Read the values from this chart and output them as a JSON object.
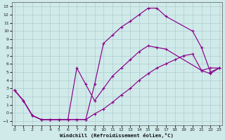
{
  "xlabel": "Windchill (Refroidissement éolien,°C)",
  "bg_color": "#d0eaea",
  "line_color": "#880088",
  "grid_color": "#b0cccc",
  "xlim": [
    -0.3,
    23.3
  ],
  "ylim": [
    -1.5,
    13.5
  ],
  "xticks": [
    0,
    1,
    2,
    3,
    4,
    5,
    6,
    7,
    8,
    9,
    10,
    11,
    12,
    13,
    14,
    15,
    16,
    17,
    18,
    19,
    20,
    21,
    22,
    23
  ],
  "yticks": [
    -1,
    0,
    1,
    2,
    3,
    4,
    5,
    6,
    7,
    8,
    9,
    10,
    11,
    12,
    13
  ],
  "curve1_x": [
    0,
    1,
    2,
    3,
    4,
    5,
    6,
    7,
    8,
    9,
    10,
    11,
    12,
    13,
    14,
    15,
    16,
    17,
    20,
    21,
    22,
    23
  ],
  "curve1_y": [
    2.8,
    1.5,
    -0.3,
    -0.8,
    -0.8,
    -0.8,
    -0.8,
    -0.8,
    -0.8,
    3.5,
    8.5,
    9.5,
    10.5,
    11.2,
    12.0,
    12.8,
    12.8,
    11.8,
    10.0,
    8.0,
    5.0,
    5.5
  ],
  "curve2_x": [
    0,
    1,
    2,
    3,
    4,
    5,
    6,
    7,
    8,
    9,
    10,
    11,
    12,
    13,
    14,
    15,
    16,
    17,
    21,
    22,
    23
  ],
  "curve2_y": [
    2.8,
    1.5,
    -0.3,
    -0.8,
    -0.8,
    -0.8,
    -0.8,
    5.5,
    3.5,
    1.5,
    3.0,
    4.5,
    5.5,
    6.5,
    7.5,
    8.2,
    8.0,
    7.8,
    5.2,
    4.8,
    5.5
  ],
  "curve3_x": [
    0,
    1,
    2,
    3,
    4,
    5,
    6,
    7,
    8,
    9,
    10,
    11,
    12,
    13,
    14,
    15,
    16,
    17,
    18,
    19,
    20,
    21,
    22,
    23
  ],
  "curve3_y": [
    2.8,
    1.5,
    -0.3,
    -0.8,
    -0.8,
    -0.8,
    -0.8,
    -0.8,
    -0.8,
    -0.1,
    0.5,
    1.3,
    2.2,
    3.0,
    4.0,
    4.8,
    5.5,
    6.0,
    6.5,
    7.0,
    7.2,
    5.2,
    5.5,
    5.5
  ]
}
